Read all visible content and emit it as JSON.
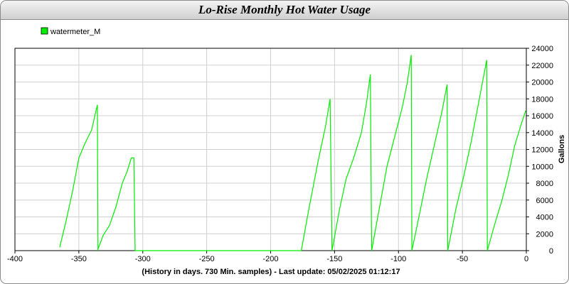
{
  "window": {
    "title": "Lo-Rise Monthly Hot Water Usage"
  },
  "chart_data": {
    "type": "line",
    "title": "Lo-Rise Monthly Hot Water Usage",
    "xlabel": "(History in days. 730 Min. samples) - Last update: 05/02/2025 01:12:17",
    "ylabel": "Gallons",
    "xlim": [
      -400,
      0
    ],
    "ylim": [
      0,
      24000
    ],
    "x_ticks": [
      -400,
      -350,
      -300,
      -250,
      -200,
      -150,
      -100,
      -50,
      0
    ],
    "y_ticks": [
      0,
      2000,
      4000,
      6000,
      8000,
      10000,
      12000,
      14000,
      16000,
      18000,
      20000,
      22000,
      24000
    ],
    "grid": true,
    "legend_position": "top-left",
    "colors": {
      "series": "#00ee00",
      "grid": "#d0d0d0",
      "axis": "#000000"
    },
    "series": [
      {
        "name": "watermeter_M",
        "segments": [
          [
            [
              -365,
              400
            ],
            [
              -360,
              3500
            ],
            [
              -355,
              7000
            ],
            [
              -350,
              11000
            ],
            [
              -345,
              12800
            ],
            [
              -340,
              14300
            ],
            [
              -335.5,
              17300
            ]
          ],
          [
            [
              -335,
              200
            ],
            [
              -331,
              1800
            ],
            [
              -326,
              3000
            ],
            [
              -321,
              5200
            ],
            [
              -316,
              8000
            ],
            [
              -312,
              9500
            ],
            [
              -309,
              11000
            ],
            [
              -307,
              11000
            ],
            [
              -306,
              0
            ]
          ],
          [
            [
              -176,
              0
            ],
            [
              -170,
              5000
            ],
            [
              -163,
              10500
            ],
            [
              -157,
              14800
            ],
            [
              -153.5,
              18000
            ]
          ],
          [
            [
              -152,
              0
            ],
            [
              -146,
              5000
            ],
            [
              -141,
              8500
            ],
            [
              -135,
              11000
            ],
            [
              -129,
              14000
            ],
            [
              -125,
              17500
            ],
            [
              -122,
              20900
            ]
          ],
          [
            [
              -121,
              0
            ],
            [
              -115,
              5000
            ],
            [
              -109,
              10000
            ],
            [
              -103,
              13500
            ],
            [
              -97,
              17000
            ],
            [
              -93,
              20000
            ],
            [
              -90,
              23200
            ]
          ],
          [
            [
              -89.5,
              0
            ],
            [
              -84,
              4000
            ],
            [
              -78,
              8500
            ],
            [
              -72,
              12500
            ],
            [
              -66,
              16500
            ],
            [
              -62,
              19700
            ]
          ],
          [
            [
              -61.5,
              0
            ],
            [
              -55,
              5000
            ],
            [
              -49,
              8800
            ],
            [
              -43,
              13000
            ],
            [
              -37,
              17800
            ],
            [
              -31,
              22600
            ]
          ],
          [
            [
              -30.5,
              0
            ],
            [
              -25,
              3000
            ],
            [
              -19,
              6000
            ],
            [
              -14,
              9000
            ],
            [
              -9,
              12500
            ],
            [
              -4,
              15000
            ],
            [
              -0.5,
              16600
            ]
          ]
        ]
      }
    ]
  }
}
